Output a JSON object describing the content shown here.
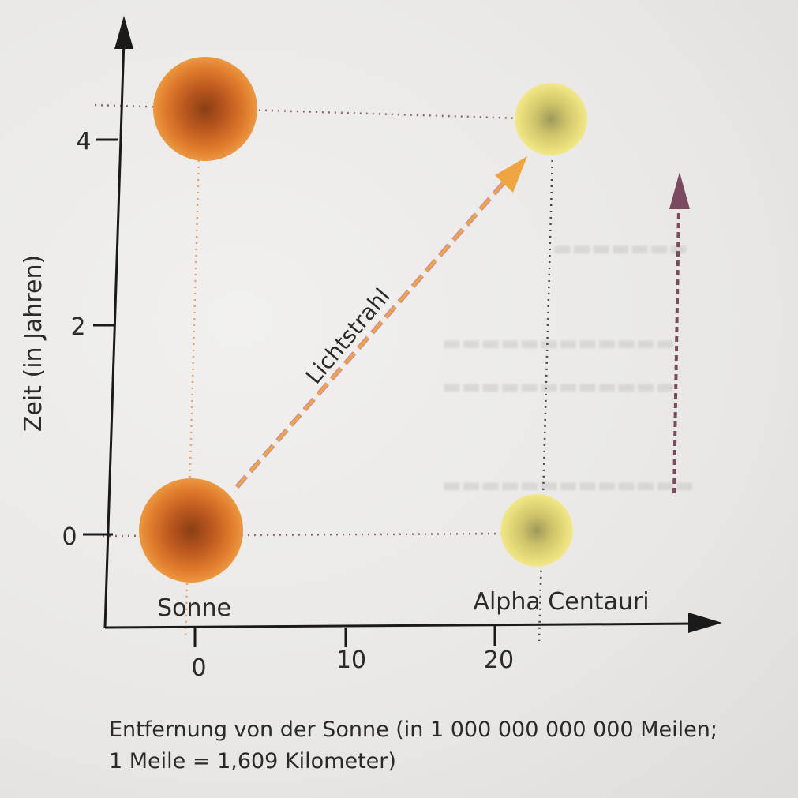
{
  "axes": {
    "y_label": "Zeit (in Jahren)",
    "y_ticks": [
      "0",
      "2",
      "4"
    ],
    "x_ticks": [
      "0",
      "10",
      "20"
    ]
  },
  "objects": {
    "sun_label": "Sonne",
    "star_label": "Alpha Centauri"
  },
  "light_ray_label": "Lichtstrahl",
  "caption": {
    "line1": "Entfernung von der Sonne (in 1 000 000 000 000 Meilen;",
    "line2": "1 Meile = 1,609 Kilometer)"
  },
  "colors": {
    "sun": "#d9752b",
    "star": "#e3d86f",
    "light_ray": "#f0a640",
    "time_arrow": "#7a4a5e",
    "axis": "#1a1a1a"
  }
}
